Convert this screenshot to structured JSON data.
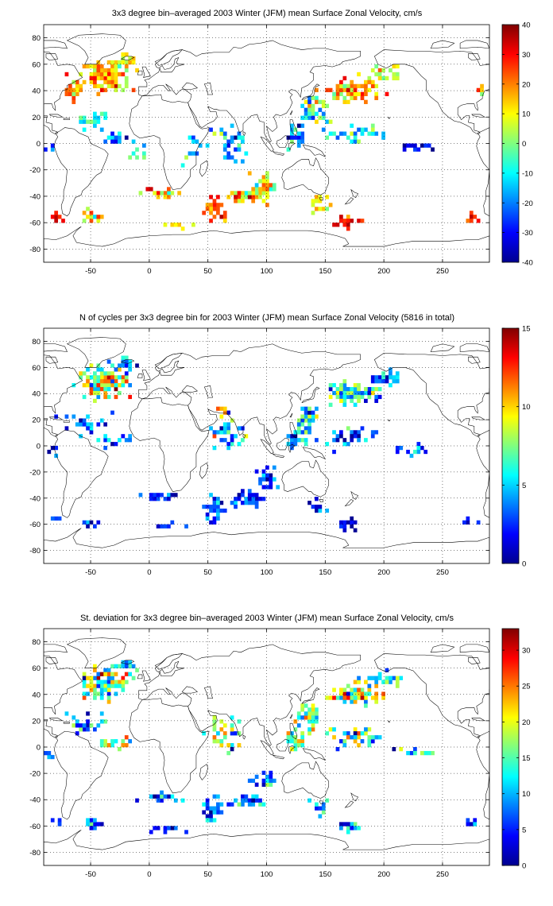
{
  "colormap": "jet",
  "chart_data": [
    {
      "type": "heatmap",
      "title": "3x3 degree bin–averaged 2003 Winter (JFM) mean Surface Zonal Velocity, cm/s",
      "xlabel": "",
      "ylabel": "",
      "xlim": [
        -90,
        290
      ],
      "ylim": [
        -90,
        90
      ],
      "x_ticks": [
        -50,
        0,
        50,
        100,
        150,
        200,
        250
      ],
      "y_ticks": [
        80,
        60,
        40,
        20,
        0,
        -20,
        -40,
        -60,
        -80
      ],
      "grid": true,
      "bin_size_deg": 3,
      "colorbar": {
        "min": -40,
        "max": 40,
        "ticks": [
          40,
          30,
          20,
          10,
          0,
          -10,
          -20,
          -30,
          -40
        ]
      },
      "seed": 11,
      "value_mode": "zonal",
      "clusters": [
        {
          "lon": -40,
          "lat": 50,
          "w": 25,
          "h": 14,
          "n": 110,
          "v": 16,
          "s": 12
        },
        {
          "lon": -20,
          "lat": 62,
          "w": 15,
          "h": 7,
          "n": 25,
          "v": 6,
          "s": 10
        },
        {
          "lon": -65,
          "lat": 38,
          "w": 10,
          "h": 8,
          "n": 18,
          "v": 18,
          "s": 14
        },
        {
          "lon": -50,
          "lat": 18,
          "w": 25,
          "h": 8,
          "n": 22,
          "v": -8,
          "s": 12
        },
        {
          "lon": -30,
          "lat": 3,
          "w": 18,
          "h": 6,
          "n": 14,
          "v": -22,
          "s": 14
        },
        {
          "lon": 10,
          "lat": -38,
          "w": 20,
          "h": 4,
          "n": 24,
          "v": 18,
          "s": 14
        },
        {
          "lon": -10,
          "lat": -5,
          "w": 10,
          "h": 15,
          "n": 10,
          "v": -5,
          "s": 12
        },
        {
          "lon": 55,
          "lat": -50,
          "w": 12,
          "h": 10,
          "n": 40,
          "v": 22,
          "s": 12
        },
        {
          "lon": 85,
          "lat": -40,
          "w": 20,
          "h": 6,
          "n": 40,
          "v": 14,
          "s": 14
        },
        {
          "lon": 100,
          "lat": -30,
          "w": 12,
          "h": 10,
          "n": 22,
          "v": 6,
          "s": 14
        },
        {
          "lon": 70,
          "lat": 0,
          "w": 20,
          "h": 18,
          "n": 32,
          "v": -15,
          "s": 14
        },
        {
          "lon": 140,
          "lat": 25,
          "w": 12,
          "h": 12,
          "n": 40,
          "v": -5,
          "s": 16
        },
        {
          "lon": 170,
          "lat": 40,
          "w": 30,
          "h": 10,
          "n": 90,
          "v": 18,
          "s": 12
        },
        {
          "lon": 200,
          "lat": 52,
          "w": 20,
          "h": 7,
          "n": 35,
          "v": 6,
          "s": 10
        },
        {
          "lon": 175,
          "lat": 8,
          "w": 30,
          "h": 10,
          "n": 35,
          "v": -12,
          "s": 14
        },
        {
          "lon": 225,
          "lat": -3,
          "w": 25,
          "h": 3,
          "n": 16,
          "v": -32,
          "s": 6
        },
        {
          "lon": 170,
          "lat": -60,
          "w": 12,
          "h": 5,
          "n": 20,
          "v": 30,
          "s": 8
        },
        {
          "lon": 145,
          "lat": -45,
          "w": 12,
          "h": 12,
          "n": 14,
          "v": 12,
          "s": 12
        },
        {
          "lon": -78,
          "lat": -56,
          "w": 6,
          "h": 4,
          "n": 8,
          "v": 28,
          "s": 8
        },
        {
          "lon": -48,
          "lat": -56,
          "w": 12,
          "h": 6,
          "n": 12,
          "v": 10,
          "s": 14
        },
        {
          "lon": 275,
          "lat": -56,
          "w": 8,
          "h": 4,
          "n": 8,
          "v": 26,
          "s": 8
        },
        {
          "lon": 282,
          "lat": 40,
          "w": 8,
          "h": 6,
          "n": 6,
          "v": 20,
          "s": 12
        },
        {
          "lon": -85,
          "lat": -5,
          "w": 8,
          "h": 4,
          "n": 6,
          "v": -25,
          "s": 10
        },
        {
          "lon": 40,
          "lat": 5,
          "w": 15,
          "h": 25,
          "n": 10,
          "v": -15,
          "s": 12
        },
        {
          "lon": 125,
          "lat": 5,
          "w": 10,
          "h": 10,
          "n": 25,
          "v": -20,
          "s": 14
        },
        {
          "lon": 25,
          "lat": -62,
          "w": 15,
          "h": 3,
          "n": 10,
          "v": 12,
          "s": 10
        }
      ]
    },
    {
      "type": "heatmap",
      "title": "N of cycles per 3x3 degree bin for 2003 Winter (JFM) mean Surface Zonal Velocity (5816 in total)",
      "xlabel": "",
      "ylabel": "",
      "xlim": [
        -90,
        290
      ],
      "ylim": [
        -90,
        90
      ],
      "x_ticks": [
        -50,
        0,
        50,
        100,
        150,
        200,
        250
      ],
      "y_ticks": [
        80,
        60,
        40,
        20,
        0,
        -20,
        -40,
        -60,
        -80
      ],
      "grid": true,
      "bin_size_deg": 3,
      "colorbar": {
        "min": 0,
        "max": 15,
        "ticks": [
          15,
          10,
          5,
          0
        ]
      },
      "seed": 23,
      "value_mode": "count",
      "clusters": [
        {
          "lon": -40,
          "lat": 48,
          "w": 25,
          "h": 14,
          "n": 110,
          "v": 9,
          "s": 4
        },
        {
          "lon": -20,
          "lat": 62,
          "w": 15,
          "h": 7,
          "n": 22,
          "v": 4,
          "s": 3
        },
        {
          "lon": -55,
          "lat": 18,
          "w": 25,
          "h": 10,
          "n": 25,
          "v": 3,
          "s": 3
        },
        {
          "lon": -30,
          "lat": 3,
          "w": 18,
          "h": 6,
          "n": 16,
          "v": 4,
          "s": 3
        },
        {
          "lon": 10,
          "lat": -38,
          "w": 20,
          "h": 4,
          "n": 22,
          "v": 2,
          "s": 2
        },
        {
          "lon": 55,
          "lat": -48,
          "w": 12,
          "h": 12,
          "n": 35,
          "v": 3,
          "s": 2
        },
        {
          "lon": 85,
          "lat": -40,
          "w": 20,
          "h": 6,
          "n": 35,
          "v": 3,
          "s": 2
        },
        {
          "lon": 100,
          "lat": -25,
          "w": 12,
          "h": 12,
          "n": 22,
          "v": 3,
          "s": 2
        },
        {
          "lon": 65,
          "lat": 10,
          "w": 20,
          "h": 18,
          "n": 35,
          "v": 5,
          "s": 4
        },
        {
          "lon": 135,
          "lat": 22,
          "w": 12,
          "h": 14,
          "n": 40,
          "v": 5,
          "s": 4
        },
        {
          "lon": 175,
          "lat": 40,
          "w": 30,
          "h": 10,
          "n": 90,
          "v": 6,
          "s": 4
        },
        {
          "lon": 200,
          "lat": 52,
          "w": 20,
          "h": 7,
          "n": 30,
          "v": 4,
          "s": 3
        },
        {
          "lon": 175,
          "lat": 8,
          "w": 30,
          "h": 10,
          "n": 35,
          "v": 3,
          "s": 3
        },
        {
          "lon": 225,
          "lat": -3,
          "w": 25,
          "h": 4,
          "n": 14,
          "v": 3,
          "s": 2
        },
        {
          "lon": 170,
          "lat": -60,
          "w": 12,
          "h": 5,
          "n": 16,
          "v": 1,
          "s": 1
        },
        {
          "lon": 145,
          "lat": -45,
          "w": 10,
          "h": 10,
          "n": 10,
          "v": 2,
          "s": 2
        },
        {
          "lon": -78,
          "lat": -56,
          "w": 6,
          "h": 4,
          "n": 8,
          "v": 3,
          "s": 2
        },
        {
          "lon": -48,
          "lat": -58,
          "w": 12,
          "h": 6,
          "n": 12,
          "v": 2,
          "s": 2
        },
        {
          "lon": 275,
          "lat": -57,
          "w": 8,
          "h": 4,
          "n": 6,
          "v": 2,
          "s": 2
        },
        {
          "lon": -85,
          "lat": -5,
          "w": 8,
          "h": 4,
          "n": 6,
          "v": 2,
          "s": 2
        },
        {
          "lon": 125,
          "lat": 5,
          "w": 10,
          "h": 10,
          "n": 25,
          "v": 4,
          "s": 3
        },
        {
          "lon": 15,
          "lat": -62,
          "w": 15,
          "h": 3,
          "n": 12,
          "v": 2,
          "s": 2
        },
        {
          "lon": 62,
          "lat": 28,
          "w": 5,
          "h": 4,
          "n": 6,
          "v": 12,
          "s": 2
        }
      ]
    },
    {
      "type": "heatmap",
      "title": "St. deviation for 3x3 degree bin–averaged 2003 Winter (JFM) mean Surface Zonal Velocity, cm/s",
      "xlabel": "",
      "ylabel": "",
      "xlim": [
        -90,
        290
      ],
      "ylim": [
        -90,
        90
      ],
      "x_ticks": [
        -50,
        0,
        50,
        100,
        150,
        200,
        250
      ],
      "y_ticks": [
        80,
        60,
        40,
        20,
        0,
        -20,
        -40,
        -60,
        -80
      ],
      "grid": true,
      "bin_size_deg": 3,
      "colorbar": {
        "min": 0,
        "max": 33,
        "ticks": [
          30,
          25,
          20,
          15,
          10,
          5,
          0
        ]
      },
      "seed": 37,
      "value_mode": "std",
      "clusters": [
        {
          "lon": -40,
          "lat": 48,
          "w": 25,
          "h": 14,
          "n": 110,
          "v": 16,
          "s": 9
        },
        {
          "lon": -20,
          "lat": 62,
          "w": 15,
          "h": 7,
          "n": 22,
          "v": 12,
          "s": 6
        },
        {
          "lon": -55,
          "lat": 18,
          "w": 25,
          "h": 10,
          "n": 25,
          "v": 12,
          "s": 8
        },
        {
          "lon": -30,
          "lat": 3,
          "w": 18,
          "h": 6,
          "n": 16,
          "v": 18,
          "s": 10
        },
        {
          "lon": 10,
          "lat": -38,
          "w": 20,
          "h": 4,
          "n": 22,
          "v": 8,
          "s": 6
        },
        {
          "lon": 55,
          "lat": -48,
          "w": 12,
          "h": 12,
          "n": 35,
          "v": 7,
          "s": 6
        },
        {
          "lon": 85,
          "lat": -40,
          "w": 20,
          "h": 6,
          "n": 35,
          "v": 8,
          "s": 6
        },
        {
          "lon": 100,
          "lat": -25,
          "w": 12,
          "h": 12,
          "n": 22,
          "v": 10,
          "s": 7
        },
        {
          "lon": 65,
          "lat": 10,
          "w": 20,
          "h": 18,
          "n": 35,
          "v": 16,
          "s": 9
        },
        {
          "lon": 135,
          "lat": 22,
          "w": 12,
          "h": 14,
          "n": 40,
          "v": 18,
          "s": 9
        },
        {
          "lon": 175,
          "lat": 40,
          "w": 30,
          "h": 10,
          "n": 90,
          "v": 18,
          "s": 9
        },
        {
          "lon": 200,
          "lat": 52,
          "w": 20,
          "h": 7,
          "n": 30,
          "v": 12,
          "s": 6
        },
        {
          "lon": 175,
          "lat": 8,
          "w": 30,
          "h": 10,
          "n": 35,
          "v": 14,
          "s": 9
        },
        {
          "lon": 225,
          "lat": -3,
          "w": 25,
          "h": 4,
          "n": 14,
          "v": 10,
          "s": 8
        },
        {
          "lon": 170,
          "lat": -60,
          "w": 12,
          "h": 5,
          "n": 16,
          "v": 8,
          "s": 6
        },
        {
          "lon": 145,
          "lat": -45,
          "w": 10,
          "h": 10,
          "n": 10,
          "v": 10,
          "s": 6
        },
        {
          "lon": -78,
          "lat": -56,
          "w": 6,
          "h": 4,
          "n": 8,
          "v": 6,
          "s": 4
        },
        {
          "lon": -48,
          "lat": -58,
          "w": 12,
          "h": 6,
          "n": 12,
          "v": 8,
          "s": 8
        },
        {
          "lon": 275,
          "lat": -57,
          "w": 8,
          "h": 4,
          "n": 6,
          "v": 6,
          "s": 4
        },
        {
          "lon": -85,
          "lat": -5,
          "w": 8,
          "h": 4,
          "n": 6,
          "v": 8,
          "s": 4
        },
        {
          "lon": 125,
          "lat": 5,
          "w": 10,
          "h": 10,
          "n": 25,
          "v": 16,
          "s": 9
        },
        {
          "lon": 15,
          "lat": -62,
          "w": 15,
          "h": 3,
          "n": 12,
          "v": 6,
          "s": 4
        }
      ]
    }
  ]
}
